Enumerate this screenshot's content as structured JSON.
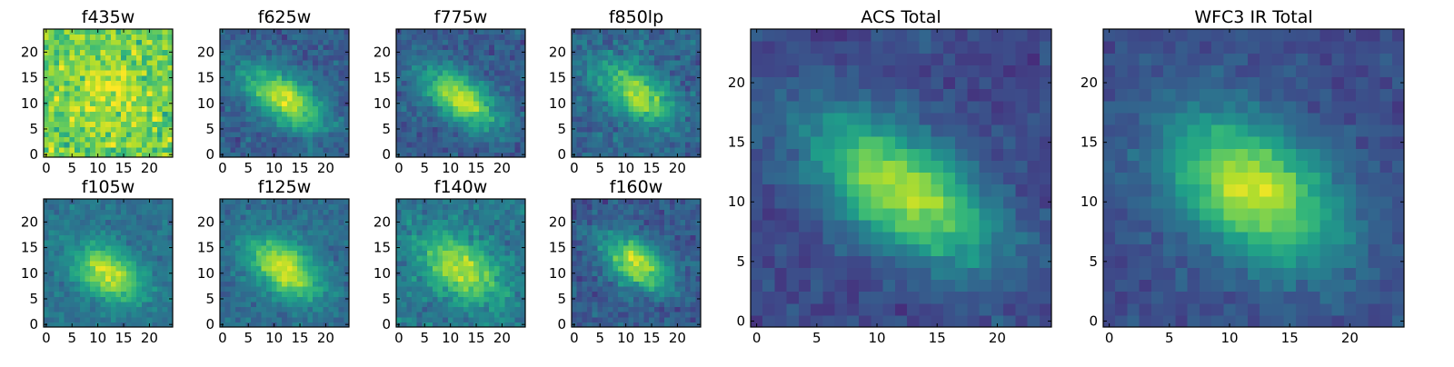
{
  "figure": {
    "colormap": "viridis",
    "colorscale": [
      "#440154",
      "#482878",
      "#3e4989",
      "#31688e",
      "#26828e",
      "#1f9e89",
      "#35b779",
      "#6ece58",
      "#b5de2b",
      "#fde725"
    ],
    "x_ticks": [
      0,
      5,
      10,
      15,
      20
    ],
    "y_ticks": [
      0,
      5,
      10,
      15,
      20
    ]
  },
  "chart_data": [
    {
      "type": "heatmap",
      "title": "f435w",
      "grid_size": 25,
      "xlim": [
        0,
        24
      ],
      "ylim": [
        0,
        24
      ],
      "peak": [
        12,
        12
      ],
      "amplitude": 0.15,
      "background": 0.78,
      "noise": 0.16,
      "sigma": [
        4.5,
        3.5
      ],
      "angle_deg": -35
    },
    {
      "type": "heatmap",
      "title": "f625w",
      "grid_size": 25,
      "xlim": [
        0,
        24
      ],
      "ylim": [
        0,
        24
      ],
      "peak": [
        12,
        11
      ],
      "amplitude": 0.62,
      "background": 0.3,
      "noise": 0.09,
      "sigma": [
        6.0,
        3.0
      ],
      "angle_deg": -35
    },
    {
      "type": "heatmap",
      "title": "f775w",
      "grid_size": 25,
      "xlim": [
        0,
        24
      ],
      "ylim": [
        0,
        24
      ],
      "peak": [
        12,
        11
      ],
      "amplitude": 0.62,
      "background": 0.28,
      "noise": 0.09,
      "sigma": [
        6.0,
        3.0
      ],
      "angle_deg": -35
    },
    {
      "type": "heatmap",
      "title": "f850lp",
      "grid_size": 25,
      "xlim": [
        0,
        24
      ],
      "ylim": [
        0,
        24
      ],
      "peak": [
        12,
        12
      ],
      "amplitude": 0.55,
      "background": 0.33,
      "noise": 0.11,
      "sigma": [
        5.5,
        3.0
      ],
      "angle_deg": -35
    },
    {
      "type": "heatmap",
      "title": "f105w",
      "grid_size": 25,
      "xlim": [
        0,
        24
      ],
      "ylim": [
        0,
        24
      ],
      "peak": [
        12,
        10
      ],
      "amplitude": 0.55,
      "background": 0.38,
      "noise": 0.08,
      "sigma": [
        5.0,
        3.2
      ],
      "angle_deg": -35
    },
    {
      "type": "heatmap",
      "title": "f125w",
      "grid_size": 25,
      "xlim": [
        0,
        24
      ],
      "ylim": [
        0,
        24
      ],
      "peak": [
        12,
        11
      ],
      "amplitude": 0.6,
      "background": 0.35,
      "noise": 0.08,
      "sigma": [
        5.5,
        3.2
      ],
      "angle_deg": -35
    },
    {
      "type": "heatmap",
      "title": "f140w",
      "grid_size": 25,
      "xlim": [
        0,
        24
      ],
      "ylim": [
        0,
        24
      ],
      "peak": [
        12,
        11
      ],
      "amplitude": 0.5,
      "background": 0.4,
      "noise": 0.1,
      "sigma": [
        6.0,
        3.5
      ],
      "angle_deg": -35
    },
    {
      "type": "heatmap",
      "title": "f160w",
      "grid_size": 25,
      "xlim": [
        0,
        24
      ],
      "ylim": [
        0,
        24
      ],
      "peak": [
        12,
        12
      ],
      "amplitude": 0.62,
      "background": 0.28,
      "noise": 0.09,
      "sigma": [
        5.0,
        3.0
      ],
      "angle_deg": -35
    },
    {
      "type": "heatmap",
      "title": "ACS Total",
      "grid_size": 25,
      "xlim": [
        0,
        24
      ],
      "ylim": [
        0,
        24
      ],
      "peak": [
        12,
        11
      ],
      "amplitude": 0.68,
      "background": 0.22,
      "noise": 0.07,
      "sigma": [
        6.0,
        3.0
      ],
      "angle_deg": -35
    },
    {
      "type": "heatmap",
      "title": "WFC3 IR Total",
      "grid_size": 25,
      "xlim": [
        0,
        24
      ],
      "ylim": [
        0,
        24
      ],
      "peak": [
        12,
        11
      ],
      "amplitude": 0.68,
      "background": 0.24,
      "noise": 0.06,
      "sigma": [
        5.5,
        3.5
      ],
      "angle_deg": -35
    }
  ]
}
